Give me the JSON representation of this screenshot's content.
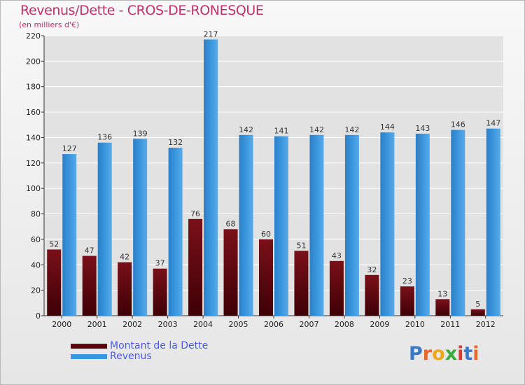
{
  "header": {
    "title": "Revenus/Dette - CROS-DE-RONESQUE",
    "subtitle": "(en milliers d'€)"
  },
  "colors": {
    "debt": "#6e0a14",
    "revenue": "#3c96dc",
    "title": "#c0306a",
    "axis": "#333333",
    "grid": "#ffffff"
  },
  "legend": {
    "items": [
      {
        "label": "Montant de la Dette",
        "color": "#6e0a14"
      },
      {
        "label": "Revenus",
        "color": "#3c96dc"
      }
    ]
  },
  "logo": {
    "text": "Proxiti"
  },
  "chart_data": {
    "type": "bar",
    "title": "Revenus/Dette - CROS-DE-RONESQUE",
    "subtitle": "(en milliers d'€)",
    "categories": [
      "2000",
      "2001",
      "2002",
      "2003",
      "2004",
      "2005",
      "2006",
      "2007",
      "2008",
      "2009",
      "2010",
      "2011",
      "2012"
    ],
    "series": [
      {
        "name": "Montant de la Dette",
        "values": [
          52,
          47,
          42,
          37,
          76,
          68,
          60,
          51,
          43,
          32,
          23,
          13,
          5
        ]
      },
      {
        "name": "Revenus",
        "values": [
          127,
          136,
          139,
          132,
          217,
          142,
          141,
          142,
          142,
          144,
          143,
          146,
          147
        ]
      }
    ],
    "ylim": [
      0,
      220
    ],
    "yticks": [
      0,
      20,
      40,
      60,
      80,
      100,
      120,
      140,
      160,
      180,
      200,
      220
    ],
    "grid": true,
    "legend_position": "bottom-left",
    "data_labels": true
  }
}
